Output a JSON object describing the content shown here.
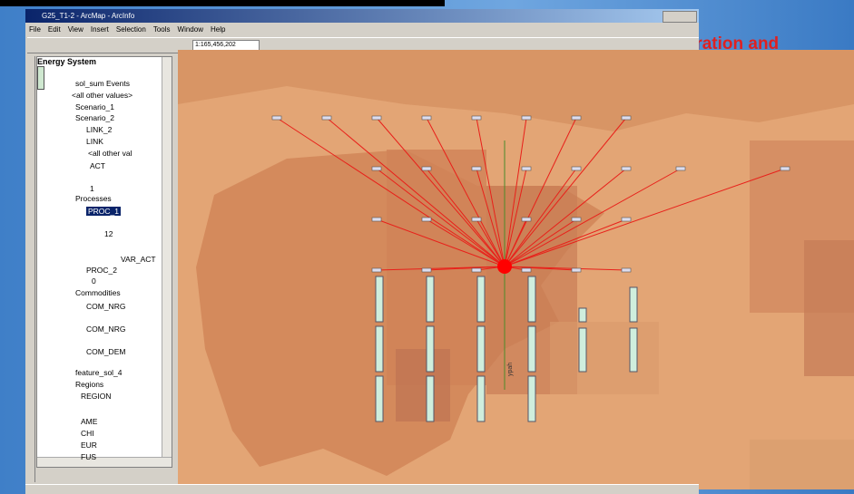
{
  "window": {
    "title": "G25_T1-2 - ArcMap - ArcInfo",
    "scale": "1:165,456,202"
  },
  "menu": [
    "File",
    "Edit",
    "View",
    "Insert",
    "Selection",
    "Tools",
    "Window",
    "Help"
  ],
  "slide": {
    "text": "tration and"
  },
  "toc": {
    "root": "Energy System",
    "items": [
      "sol_sum Events",
      "<all other values>",
      "Scenario_1",
      "Scenario_2",
      "LINK_2",
      "LINK",
      "<all other val",
      "ACT",
      "1",
      "Processes",
      "PROC_1",
      "12",
      "VAR_ACT",
      "PROC_2",
      "0",
      "Commodities",
      "COM_NRG",
      "COM_NRG",
      "COM_DEM",
      "feature_sol_4",
      "Regions",
      "REGION",
      "AME",
      "CHI",
      "EUR",
      "FUS"
    ]
  },
  "map": {
    "label": "ypah"
  }
}
